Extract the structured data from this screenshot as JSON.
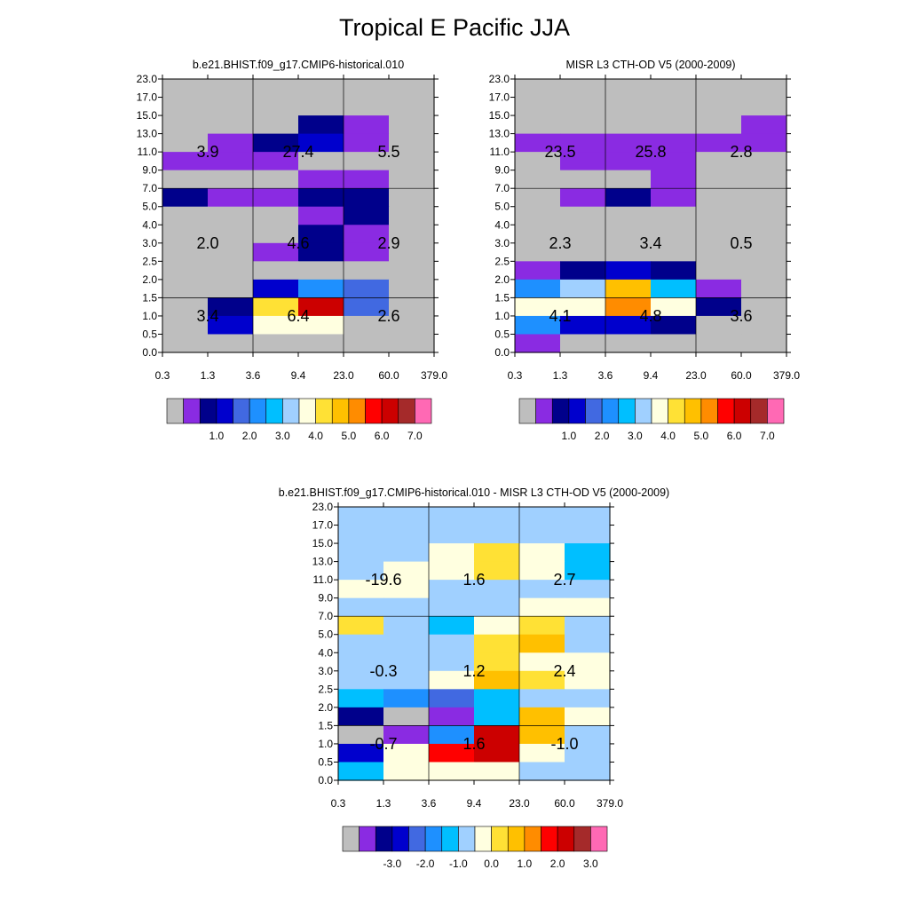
{
  "title": "Tropical E Pacific JJA",
  "colors": {
    "palette": [
      "#bebebe",
      "#8a2be2",
      "#00008b",
      "#0000cd",
      "#4169e1",
      "#1e90ff",
      "#00bfff",
      "#a0d0ff",
      "#ffffe0",
      "#ffe135",
      "#ffc000",
      "#ff8c00",
      "#ff0000",
      "#cc0000",
      "#a52a2a",
      "#ff69b4"
    ],
    "gray": "#bebebe"
  },
  "chart_data": [
    {
      "type": "heatmap",
      "title": "b.e21.BHIST.f09_g17.CMIP6-historical.010",
      "x_ticks": [
        "0.3",
        "1.3",
        "3.6",
        "9.4",
        "23.0",
        "60.0",
        "379.0"
      ],
      "y_ticks": [
        "0.0",
        "0.5",
        "1.0",
        "1.5",
        "2.0",
        "2.5",
        "3.0",
        "4.0",
        "5.0",
        "7.0",
        "9.0",
        "11.0",
        "13.0",
        "15.0",
        "17.0",
        "23.0"
      ],
      "cells_top_to_bottom": [
        [
          0,
          0,
          0,
          0,
          0,
          0
        ],
        [
          0,
          0,
          0,
          0,
          0,
          0
        ],
        [
          0,
          0,
          0,
          2,
          1,
          0
        ],
        [
          0,
          1,
          2,
          3,
          1,
          0
        ],
        [
          1,
          1,
          1,
          0,
          0,
          0
        ],
        [
          0,
          0,
          0,
          1,
          1,
          0
        ],
        [
          2,
          1,
          1,
          2,
          2,
          0
        ],
        [
          0,
          0,
          0,
          1,
          2,
          0
        ],
        [
          0,
          0,
          0,
          2,
          1,
          0
        ],
        [
          0,
          0,
          1,
          2,
          1,
          0
        ],
        [
          0,
          0,
          0,
          0,
          0,
          0
        ],
        [
          0,
          0,
          3,
          5,
          4,
          0
        ],
        [
          0,
          2,
          9,
          13,
          4,
          0
        ],
        [
          0,
          3,
          8,
          8,
          0,
          0
        ],
        [
          0,
          0,
          0,
          0,
          0,
          0
        ]
      ],
      "annotations": [
        {
          "text": "3.4",
          "col": 0,
          "row": 12
        },
        {
          "text": "6.4",
          "col": 1,
          "row": 12
        },
        {
          "text": "2.6",
          "col": 2,
          "row": 12
        },
        {
          "text": "2.0",
          "col": 0,
          "row": 8
        },
        {
          "text": "4.6",
          "col": 1,
          "row": 8
        },
        {
          "text": "2.9",
          "col": 2,
          "row": 8
        },
        {
          "text": "3.9",
          "col": 0,
          "row": 3
        },
        {
          "text": "27.4",
          "col": 1,
          "row": 3
        },
        {
          "text": "5.5",
          "col": 2,
          "row": 3
        }
      ],
      "colorbar_labels": [
        "1.0",
        "2.0",
        "3.0",
        "4.0",
        "5.0",
        "6.0",
        "7.0"
      ]
    },
    {
      "type": "heatmap",
      "title": "MISR L3 CTH-OD V5 (2000-2009)",
      "x_ticks": [
        "0.3",
        "1.3",
        "3.6",
        "9.4",
        "23.0",
        "60.0",
        "379.0"
      ],
      "y_ticks": [
        "0.0",
        "0.5",
        "1.0",
        "1.5",
        "2.0",
        "2.5",
        "3.0",
        "4.0",
        "5.0",
        "7.0",
        "9.0",
        "11.0",
        "13.0",
        "15.0",
        "17.0",
        "23.0"
      ],
      "cells_top_to_bottom": [
        [
          0,
          0,
          0,
          0,
          0,
          0
        ],
        [
          0,
          0,
          0,
          0,
          0,
          0
        ],
        [
          0,
          0,
          0,
          0,
          0,
          1
        ],
        [
          1,
          1,
          1,
          1,
          1,
          1
        ],
        [
          0,
          1,
          1,
          1,
          0,
          0
        ],
        [
          0,
          0,
          0,
          1,
          0,
          0
        ],
        [
          0,
          1,
          2,
          1,
          0,
          0
        ],
        [
          0,
          0,
          0,
          0,
          0,
          0
        ],
        [
          0,
          0,
          0,
          0,
          0,
          0
        ],
        [
          0,
          0,
          0,
          0,
          0,
          0
        ],
        [
          1,
          2,
          3,
          2,
          0,
          0
        ],
        [
          5,
          7,
          10,
          6,
          1,
          0
        ],
        [
          8,
          8,
          11,
          8,
          2,
          0
        ],
        [
          5,
          3,
          3,
          2,
          0,
          0
        ],
        [
          1,
          0,
          0,
          0,
          0,
          0
        ]
      ],
      "annotations": [
        {
          "text": "4.1",
          "col": 0,
          "row": 12
        },
        {
          "text": "4.8",
          "col": 1,
          "row": 12
        },
        {
          "text": "3.6",
          "col": 2,
          "row": 12
        },
        {
          "text": "2.3",
          "col": 0,
          "row": 8
        },
        {
          "text": "3.4",
          "col": 1,
          "row": 8
        },
        {
          "text": "0.5",
          "col": 2,
          "row": 8
        },
        {
          "text": "23.5",
          "col": 0,
          "row": 3
        },
        {
          "text": "25.8",
          "col": 1,
          "row": 3
        },
        {
          "text": "2.8",
          "col": 2,
          "row": 3
        }
      ],
      "colorbar_labels": [
        "1.0",
        "2.0",
        "3.0",
        "4.0",
        "5.0",
        "6.0",
        "7.0"
      ]
    },
    {
      "type": "heatmap",
      "title": "b.e21.BHIST.f09_g17.CMIP6-historical.010 - MISR L3 CTH-OD V5 (2000-2009)",
      "x_ticks": [
        "0.3",
        "1.3",
        "3.6",
        "9.4",
        "23.0",
        "60.0",
        "379.0"
      ],
      "y_ticks": [
        "0.0",
        "0.5",
        "1.0",
        "1.5",
        "2.0",
        "2.5",
        "3.0",
        "4.0",
        "5.0",
        "7.0",
        "9.0",
        "11.0",
        "13.0",
        "15.0",
        "17.0",
        "23.0"
      ],
      "cells_top_to_bottom": [
        [
          7,
          7,
          7,
          7,
          7,
          7
        ],
        [
          7,
          7,
          7,
          7,
          7,
          7
        ],
        [
          7,
          7,
          8,
          9,
          8,
          6
        ],
        [
          7,
          8,
          8,
          9,
          8,
          6
        ],
        [
          8,
          8,
          7,
          7,
          7,
          7
        ],
        [
          7,
          7,
          7,
          7,
          8,
          8
        ],
        [
          9,
          7,
          6,
          8,
          9,
          7
        ],
        [
          7,
          7,
          7,
          9,
          10,
          7
        ],
        [
          7,
          7,
          7,
          9,
          8,
          8
        ],
        [
          7,
          7,
          8,
          10,
          9,
          8
        ],
        [
          6,
          5,
          4,
          6,
          7,
          7
        ],
        [
          2,
          0,
          1,
          6,
          10,
          8
        ],
        [
          0,
          1,
          5,
          13,
          10,
          7
        ],
        [
          3,
          8,
          12,
          13,
          8,
          7
        ],
        [
          6,
          8,
          8,
          8,
          7,
          7
        ]
      ],
      "annotations": [
        {
          "text": "-0.7",
          "col": 0,
          "row": 12
        },
        {
          "text": "1.6",
          "col": 1,
          "row": 12
        },
        {
          "text": "-1.0",
          "col": 2,
          "row": 12
        },
        {
          "text": "-0.3",
          "col": 0,
          "row": 8
        },
        {
          "text": "1.2",
          "col": 1,
          "row": 8
        },
        {
          "text": "2.4",
          "col": 2,
          "row": 8
        },
        {
          "text": "-19.6",
          "col": 0,
          "row": 3
        },
        {
          "text": "1.6",
          "col": 1,
          "row": 3
        },
        {
          "text": "2.7",
          "col": 2,
          "row": 3
        }
      ],
      "colorbar_labels": [
        "-3.0",
        "-2.0",
        "-1.0",
        "0.0",
        "1.0",
        "2.0",
        "3.0"
      ]
    }
  ]
}
